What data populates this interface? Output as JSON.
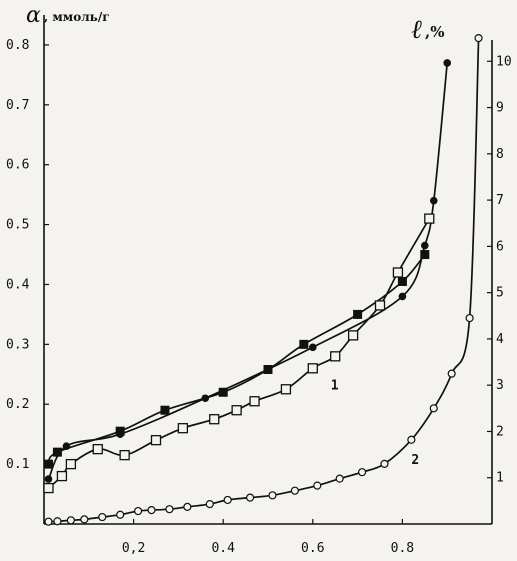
{
  "chart_data": {
    "type": "scatter",
    "xlim": [
      0,
      1.0
    ],
    "ylim_left": [
      0,
      0.85
    ],
    "ylim_right": [
      0,
      11
    ],
    "grid": false,
    "left_axis": {
      "symbol": "α",
      "unit": ", ммоль/г",
      "ticks": [
        {
          "v": 0.1,
          "t": "0.1"
        },
        {
          "v": 0.2,
          "t": "0.2"
        },
        {
          "v": 0.3,
          "t": "0.3"
        },
        {
          "v": 0.4,
          "t": "0.4"
        },
        {
          "v": 0.5,
          "t": "0.5"
        },
        {
          "v": 0.6,
          "t": "0.6"
        },
        {
          "v": 0.7,
          "t": "0.7"
        },
        {
          "v": 0.8,
          "t": "0.8"
        }
      ]
    },
    "right_axis": {
      "symbol": "ℓ",
      "unit": ",%",
      "ticks": [
        {
          "v": 1,
          "t": "1"
        },
        {
          "v": 2,
          "t": "2"
        },
        {
          "v": 3,
          "t": "3"
        },
        {
          "v": 4,
          "t": "4"
        },
        {
          "v": 5,
          "t": "5"
        },
        {
          "v": 6,
          "t": "6"
        },
        {
          "v": 7,
          "t": "7"
        },
        {
          "v": 8,
          "t": "8"
        },
        {
          "v": 9,
          "t": "9"
        },
        {
          "v": 10,
          "t": "10"
        }
      ]
    },
    "x_ticks": [
      {
        "v": 0.2,
        "t": "0,2"
      },
      {
        "v": 0.4,
        "t": "0.4"
      },
      {
        "v": 0.6,
        "t": "0.6"
      },
      {
        "v": 0.8,
        "t": "0.8"
      }
    ],
    "curve_labels": [
      {
        "text": "1",
        "x": 0.64,
        "y": 0.225,
        "axis": "left"
      },
      {
        "text": "2",
        "x": 0.82,
        "y": 1.3,
        "axis": "right"
      }
    ],
    "series": [
      {
        "marker": "filled-square",
        "axis": "left",
        "x": [
          0.01,
          0.03,
          0.17,
          0.27,
          0.4,
          0.5,
          0.58,
          0.7,
          0.8,
          0.85
        ],
        "y": [
          0.1,
          0.12,
          0.155,
          0.19,
          0.22,
          0.258,
          0.3,
          0.35,
          0.405,
          0.45
        ]
      },
      {
        "marker": "filled-circle",
        "axis": "left",
        "x": [
          0.01,
          0.05,
          0.17,
          0.36,
          0.6,
          0.8,
          0.85,
          0.87,
          0.9
        ],
        "y": [
          0.075,
          0.13,
          0.15,
          0.21,
          0.295,
          0.38,
          0.465,
          0.54,
          0.77
        ]
      },
      {
        "marker": "open-square",
        "axis": "left",
        "x": [
          0.01,
          0.04,
          0.06,
          0.12,
          0.18,
          0.25,
          0.31,
          0.38,
          0.43,
          0.47,
          0.54,
          0.6,
          0.65,
          0.69,
          0.75,
          0.79,
          0.86
        ],
        "y": [
          0.06,
          0.08,
          0.1,
          0.125,
          0.115,
          0.14,
          0.16,
          0.175,
          0.19,
          0.205,
          0.225,
          0.26,
          0.28,
          0.315,
          0.365,
          0.42,
          0.51
        ]
      },
      {
        "marker": "open-circle",
        "axis": "right",
        "x": [
          0.01,
          0.03,
          0.06,
          0.09,
          0.13,
          0.17,
          0.21,
          0.24,
          0.28,
          0.32,
          0.37,
          0.41,
          0.46,
          0.51,
          0.56,
          0.61,
          0.66,
          0.71,
          0.76,
          0.82,
          0.87,
          0.91,
          0.95,
          0.97
        ],
        "y": [
          0.05,
          0.06,
          0.08,
          0.1,
          0.15,
          0.2,
          0.28,
          0.3,
          0.32,
          0.37,
          0.43,
          0.52,
          0.57,
          0.62,
          0.72,
          0.83,
          0.98,
          1.12,
          1.3,
          1.82,
          2.5,
          3.25,
          4.45,
          10.5
        ]
      }
    ]
  }
}
